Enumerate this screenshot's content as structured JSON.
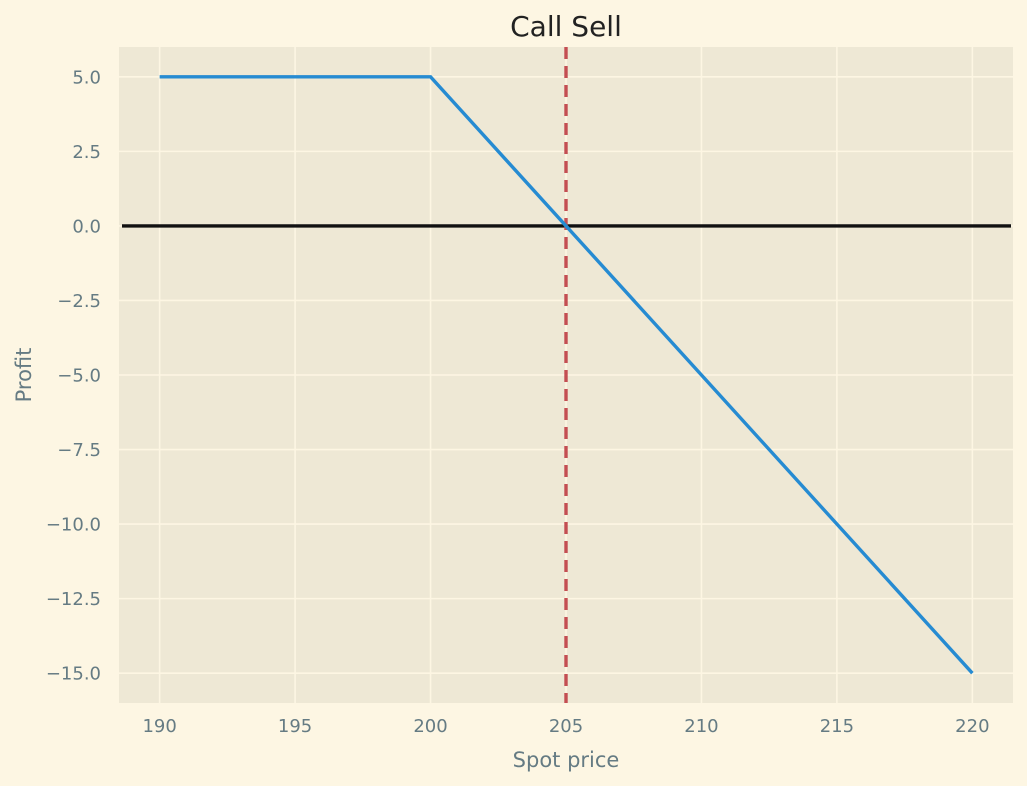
{
  "chart_data": {
    "type": "line",
    "title": "Call Sell",
    "xlabel": "Spot price",
    "ylabel": "Profit",
    "xlim": [
      188.5,
      221.5
    ],
    "ylim": [
      -16.0,
      6.0
    ],
    "x_ticks": [
      190,
      195,
      200,
      205,
      210,
      215,
      220
    ],
    "x_tick_labels": [
      "190",
      "195",
      "200",
      "205",
      "210",
      "215",
      "220"
    ],
    "y_ticks": [
      5.0,
      2.5,
      0.0,
      -2.5,
      -5.0,
      -7.5,
      -10.0,
      -12.5,
      -15.0
    ],
    "y_tick_labels": [
      "5.0",
      "2.5",
      "0.0",
      "−2.5",
      "−5.0",
      "−7.5",
      "−10.0",
      "−12.5",
      "−15.0"
    ],
    "grid": true,
    "series": [
      {
        "x": [
          190,
          200,
          220
        ],
        "y": [
          5,
          5,
          -15
        ],
        "color": "#268bd2"
      }
    ],
    "reference_lines": [
      {
        "orientation": "horizontal",
        "value": 0,
        "color": "#111111",
        "style": "solid"
      },
      {
        "orientation": "vertical",
        "value": 205,
        "color": "#c44e52",
        "style": "dashed"
      }
    ]
  },
  "colors": {
    "background": "#fdf6e3",
    "plot_background": "#eee8d5",
    "grid": "#fdf6e3",
    "tick_text": "#657b83",
    "title_text": "#222222"
  }
}
